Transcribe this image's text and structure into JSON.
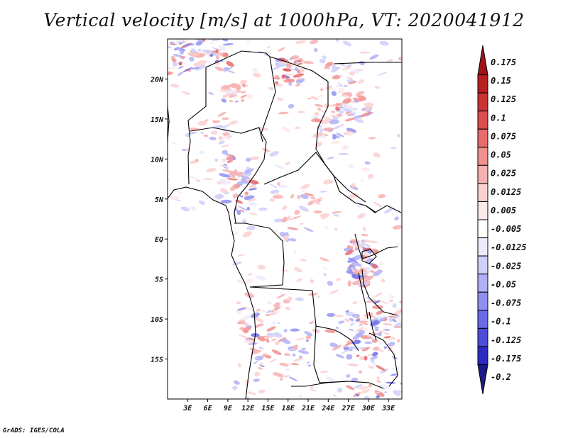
{
  "header": {
    "title": "Vertical velocity [m/s] at 1000hPa, VT: 2020041912"
  },
  "footer": {
    "credit": "GrADS: IGES/COLA"
  },
  "colors": {
    "colorbar": [
      "#1a1a8c",
      "#2b2bc4",
      "#4d4dd9",
      "#6b6be8",
      "#8f8ff2",
      "#b0b0f7",
      "#cfcffa",
      "#ebebfd",
      "#ffffff",
      "#fde9e9",
      "#fbd0d0",
      "#f7b0b0",
      "#f28f8f",
      "#e86b6b",
      "#dd4d4d",
      "#cc3333",
      "#b81f1f",
      "#a01414"
    ]
  },
  "chart_data": {
    "type": "heatmap",
    "title": "Vertical velocity [m/s] at 1000hPa, VT: 2020041912",
    "x_ticks": [
      "3E",
      "6E",
      "9E",
      "12E",
      "15E",
      "18E",
      "21E",
      "24E",
      "27E",
      "30E",
      "33E"
    ],
    "x_tick_values": [
      3,
      6,
      9,
      12,
      15,
      18,
      21,
      24,
      27,
      30,
      33
    ],
    "y_ticks": [
      "20N",
      "15N",
      "10N",
      "5N",
      "EQ",
      "5S",
      "10S",
      "15S"
    ],
    "y_tick_values": [
      20,
      15,
      10,
      5,
      0,
      -5,
      -10,
      -15
    ],
    "xlim": [
      0,
      35
    ],
    "ylim": [
      -20,
      25
    ],
    "colorbar": {
      "labels": [
        "0.175",
        "0.15",
        "0.125",
        "0.1",
        "0.075",
        "0.05",
        "0.025",
        "0.0125",
        "0.005",
        "-0.005",
        "-0.0125",
        "-0.025",
        "-0.05",
        "-0.075",
        "-0.1",
        "-0.125",
        "-0.175",
        "-0.2"
      ]
    }
  }
}
